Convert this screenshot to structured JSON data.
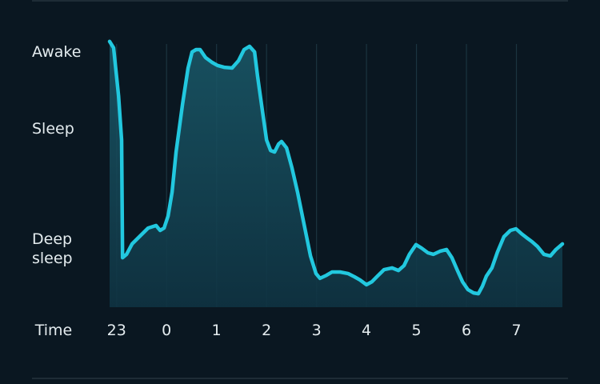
{
  "chart_data": {
    "type": "area",
    "color": "#22c8df",
    "x_label": "Time",
    "x": [
      -1.14,
      -1.06,
      -0.96,
      -0.9,
      -0.88,
      -0.8,
      -0.69,
      -0.53,
      -0.37,
      -0.21,
      -0.13,
      -0.05,
      0.03,
      0.11,
      0.19,
      0.32,
      0.43,
      0.51,
      0.59,
      0.67,
      0.78,
      0.91,
      1.02,
      1.15,
      1.31,
      1.44,
      1.55,
      1.66,
      1.76,
      1.82,
      1.92,
      2.0,
      2.08,
      2.16,
      2.24,
      2.3,
      2.4,
      2.51,
      2.62,
      2.75,
      2.88,
      2.99,
      3.07,
      3.2,
      3.31,
      3.47,
      3.63,
      3.76,
      3.87,
      4.0,
      4.11,
      4.22,
      4.35,
      4.51,
      4.64,
      4.75,
      4.86,
      4.99,
      5.1,
      5.23,
      5.34,
      5.47,
      5.6,
      5.71,
      5.82,
      5.92,
      6.03,
      6.14,
      6.24,
      6.32,
      6.4,
      6.51,
      6.62,
      6.75,
      6.88,
      6.99,
      7.1,
      7.2,
      7.31,
      7.42,
      7.55,
      7.68,
      7.79,
      7.92
    ],
    "values": [
      104.1,
      101.6,
      82.8,
      65.5,
      19.4,
      20.7,
      24.8,
      27.9,
      31.0,
      32.0,
      30.1,
      31.0,
      35.7,
      45.1,
      60.8,
      79.6,
      93.7,
      100.0,
      100.9,
      100.9,
      97.8,
      95.9,
      94.7,
      94.0,
      93.7,
      96.6,
      100.9,
      102.2,
      100.0,
      90.6,
      76.5,
      65.5,
      61.4,
      60.8,
      63.9,
      64.9,
      62.4,
      54.5,
      45.1,
      32.6,
      20.1,
      13.2,
      11.3,
      12.5,
      13.8,
      13.8,
      13.2,
      11.9,
      10.7,
      8.8,
      10.0,
      12.2,
      14.7,
      15.4,
      14.4,
      16.3,
      20.7,
      24.5,
      23.2,
      21.3,
      20.7,
      21.9,
      22.6,
      19.4,
      14.4,
      10.0,
      6.9,
      5.6,
      5.3,
      8.2,
      12.2,
      15.4,
      21.6,
      27.6,
      30.1,
      30.7,
      28.8,
      27.3,
      25.7,
      23.8,
      20.7,
      20.1,
      22.6,
      24.8
    ],
    "xlim": [
      -1.14,
      7.92
    ],
    "xticks": [
      {
        "value": -1,
        "label": "23"
      },
      0,
      1,
      2,
      3,
      4,
      5,
      6,
      7
    ],
    "ylim": [
      0,
      110
    ],
    "yticks": [
      {
        "value": 100,
        "label": "Awake"
      },
      {
        "value": 70,
        "label": "Sleep"
      },
      {
        "value": 23,
        "label": "Deep sleep"
      }
    ],
    "grid": true
  }
}
